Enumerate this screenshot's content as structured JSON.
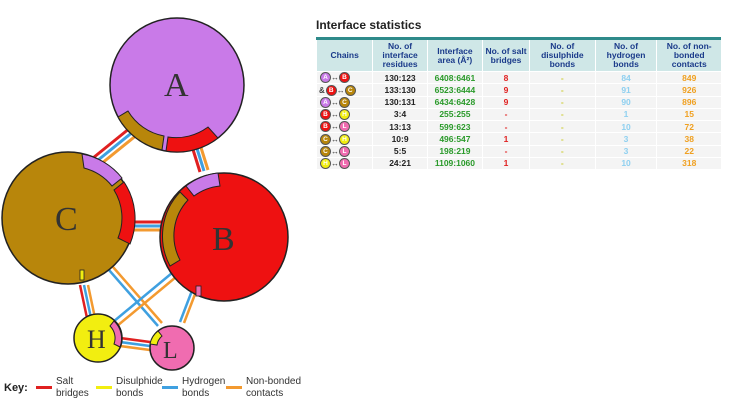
{
  "diagram": {
    "circles": [
      {
        "id": "A",
        "label": "A",
        "color": "#c97ae8"
      },
      {
        "id": "B",
        "label": "B",
        "color": "#ee1111"
      },
      {
        "id": "C",
        "label": "C",
        "color": "#b8860b"
      },
      {
        "id": "H",
        "label": "H",
        "color": "#f2ee10"
      },
      {
        "id": "L",
        "label": "L",
        "color": "#f06cb0"
      }
    ]
  },
  "key": {
    "title": "Key:",
    "items": [
      {
        "label": "Salt bridges",
        "color": "#e02020"
      },
      {
        "label": "Disulphide bonds",
        "color": "#f2ee10"
      },
      {
        "label": "Hydrogen bonds",
        "color": "#3fa0e0"
      },
      {
        "label": "Non-bonded contacts",
        "color": "#f39a30"
      }
    ]
  },
  "stats": {
    "title": "Interface statistics",
    "headers": {
      "chains": "Chains",
      "residues": "No. of interface residues",
      "area": "Interface area (Å²)",
      "salt": "No. of salt bridges",
      "disulphide": "No. of disulphide bonds",
      "hbonds": "No. of hydrogen bonds",
      "nonbonded": "No. of non-bonded contacts"
    },
    "rows": [
      {
        "a": "A",
        "b": "B",
        "prefix": "",
        "residues": "130:123",
        "area": "6408:6461",
        "salt": "8",
        "disulphide": "-",
        "hbonds": "84",
        "nonbonded": "849"
      },
      {
        "a": "B",
        "b": "C",
        "prefix": "&",
        "residues": "133:130",
        "area": "6523:6444",
        "salt": "9",
        "disulphide": "-",
        "hbonds": "91",
        "nonbonded": "926"
      },
      {
        "a": "A",
        "b": "C",
        "prefix": "",
        "residues": "130:131",
        "area": "6434:6428",
        "salt": "9",
        "disulphide": "-",
        "hbonds": "90",
        "nonbonded": "896"
      },
      {
        "a": "B",
        "b": "H",
        "prefix": "",
        "residues": "3:4",
        "area": "255:255",
        "salt": "-",
        "disulphide": "-",
        "hbonds": "1",
        "nonbonded": "15"
      },
      {
        "a": "B",
        "b": "L",
        "prefix": "",
        "residues": "13:13",
        "area": "599:623",
        "salt": "-",
        "disulphide": "-",
        "hbonds": "10",
        "nonbonded": "72"
      },
      {
        "a": "C",
        "b": "H",
        "prefix": "",
        "residues": "10:9",
        "area": "496:547",
        "salt": "1",
        "disulphide": "-",
        "hbonds": "3",
        "nonbonded": "38"
      },
      {
        "a": "C",
        "b": "L",
        "prefix": "",
        "residues": "5:5",
        "area": "198:219",
        "salt": "-",
        "disulphide": "-",
        "hbonds": "3",
        "nonbonded": "22"
      },
      {
        "a": "H",
        "b": "L",
        "prefix": "",
        "residues": "24:21",
        "area": "1109:1060",
        "salt": "1",
        "disulphide": "-",
        "hbonds": "10",
        "nonbonded": "318"
      }
    ]
  }
}
